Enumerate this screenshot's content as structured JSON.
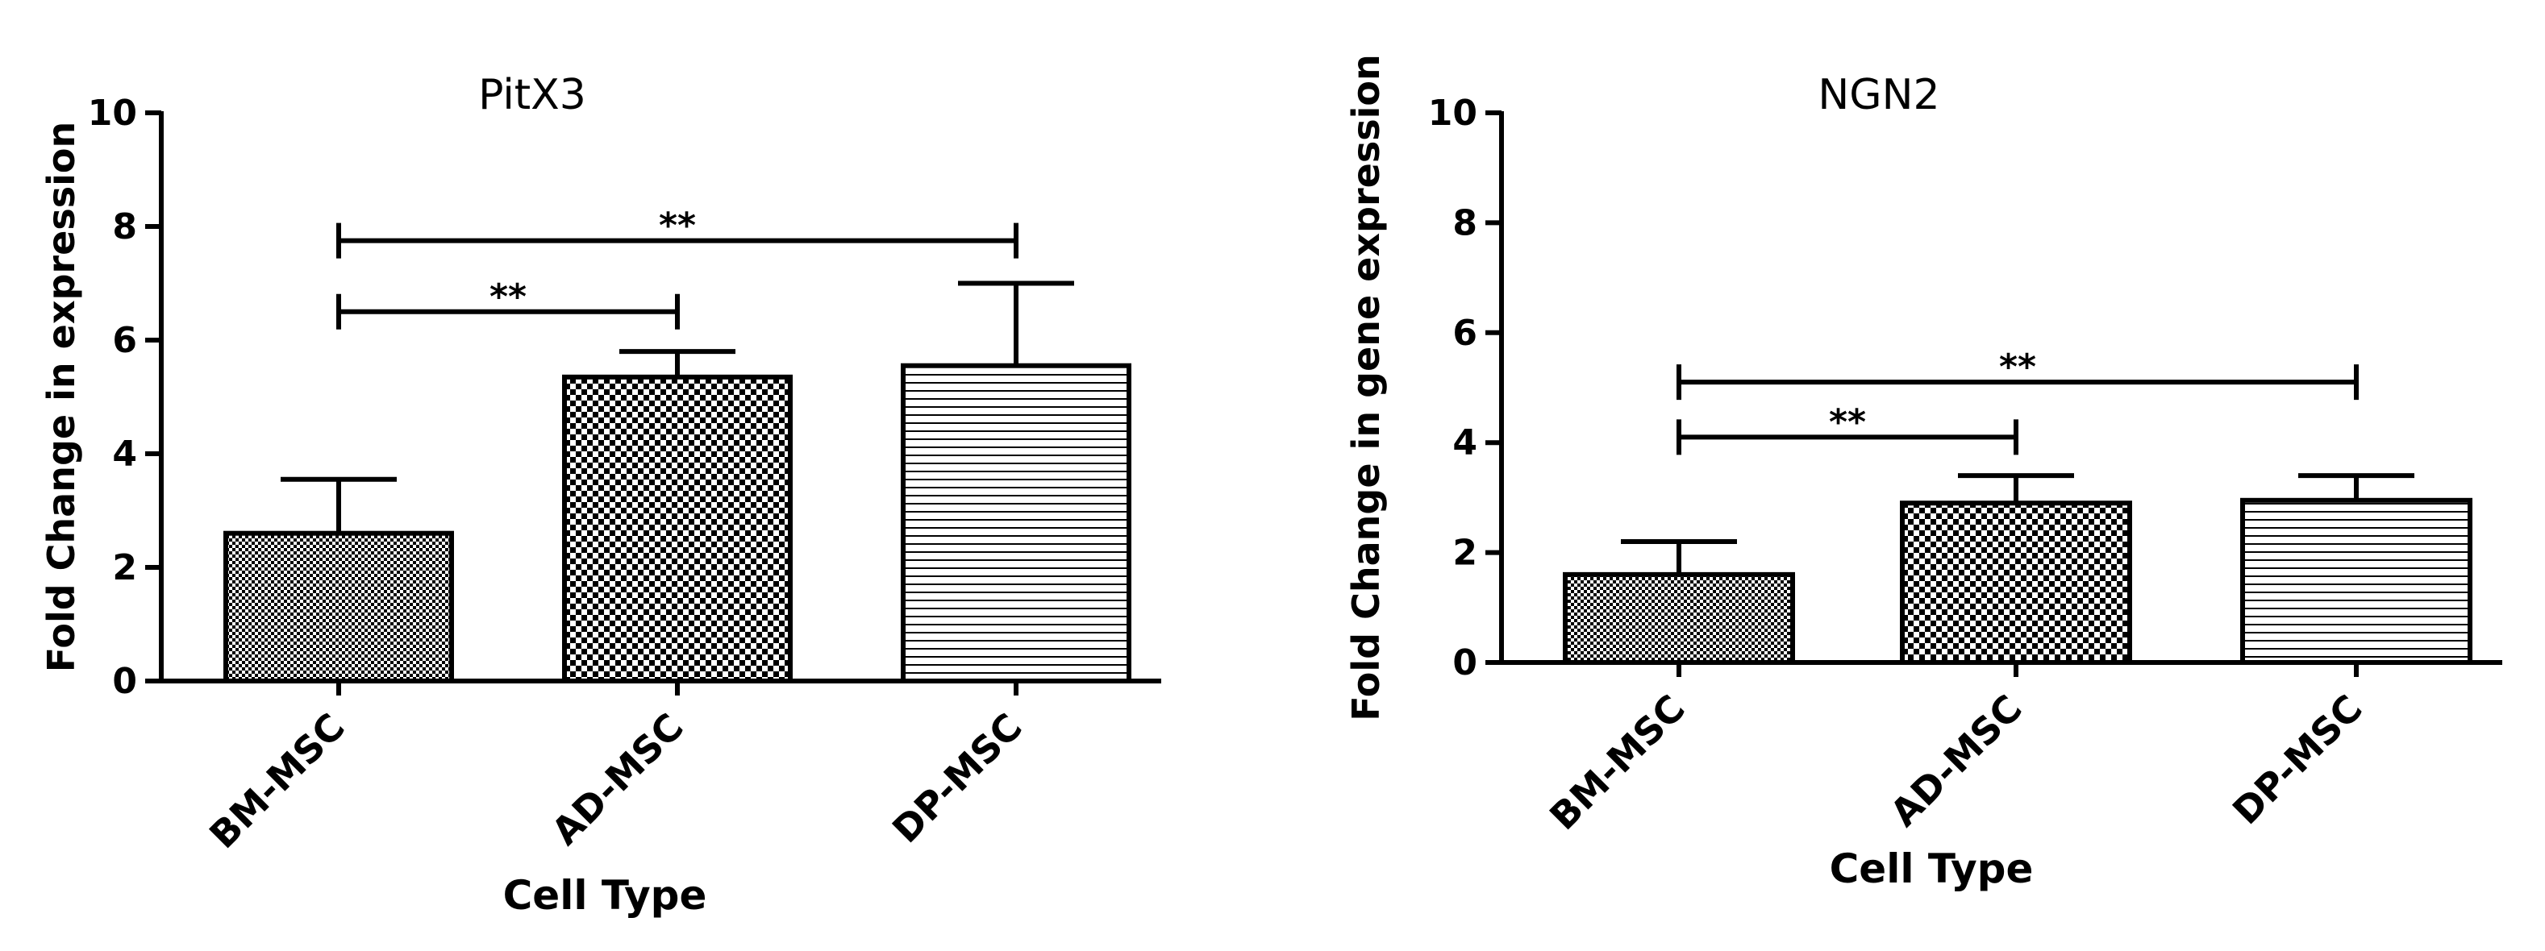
{
  "chart_data": [
    {
      "type": "bar",
      "title": "PitX3",
      "xlabel": "Cell Type",
      "ylabel": "Fold Change in expression",
      "ylim": [
        0,
        10
      ],
      "yticks": [
        0,
        2,
        4,
        6,
        8,
        10
      ],
      "categories": [
        "BM-MSC",
        "AD-MSC",
        "DP-MSC"
      ],
      "values": [
        2.6,
        5.35,
        5.55
      ],
      "errors": [
        0.95,
        0.45,
        1.45
      ],
      "patterns": [
        "fine-checker",
        "checker",
        "horizontal-lines"
      ],
      "significance": [
        {
          "from": "BM-MSC",
          "to": "AD-MSC",
          "label": "**",
          "y": 6.5
        },
        {
          "from": "BM-MSC",
          "to": "DP-MSC",
          "label": "**",
          "y": 7.75
        }
      ]
    },
    {
      "type": "bar",
      "title": "NGN2",
      "xlabel": "Cell Type",
      "ylabel": "Fold Change in gene expression",
      "ylim": [
        0,
        10
      ],
      "yticks": [
        0,
        2,
        4,
        6,
        8,
        10
      ],
      "categories": [
        "BM-MSC",
        "AD-MSC",
        "DP-MSC"
      ],
      "values": [
        1.6,
        2.9,
        2.95
      ],
      "errors": [
        0.6,
        0.5,
        0.45
      ],
      "patterns": [
        "fine-checker",
        "checker",
        "horizontal-lines"
      ],
      "significance": [
        {
          "from": "BM-MSC",
          "to": "AD-MSC",
          "label": "**",
          "y": 4.1
        },
        {
          "from": "BM-MSC",
          "to": "DP-MSC",
          "label": "**",
          "y": 5.1
        }
      ]
    }
  ]
}
